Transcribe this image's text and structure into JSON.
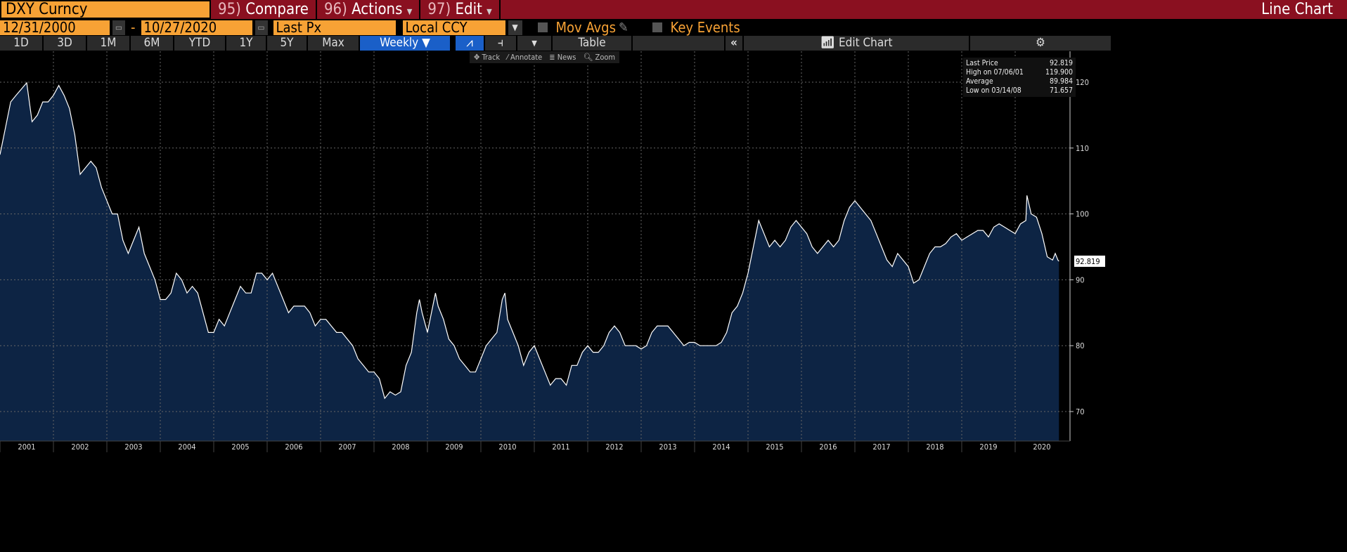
{
  "header": {
    "ticker": "DXY Curncy",
    "compare": {
      "num": "95)",
      "label": "Compare"
    },
    "actions": {
      "num": "96)",
      "label": "Actions"
    },
    "edit": {
      "num": "97)",
      "label": "Edit"
    },
    "title": "Line Chart"
  },
  "options": {
    "start_date": "12/31/2000",
    "dash": "-",
    "end_date": "10/27/2020",
    "field": "Last Px",
    "currency": "Local CCY",
    "mov_avgs": "Mov Avgs",
    "key_events": "Key Events"
  },
  "toolbar": {
    "ranges": [
      "1D",
      "3D",
      "1M",
      "6M",
      "YTD",
      "1Y",
      "5Y",
      "Max"
    ],
    "period": "Weekly ▼",
    "table": "Table",
    "collapse": "«",
    "edit_chart": "Edit Chart"
  },
  "chart_tools": {
    "track": "Track",
    "annotate": "Annotate",
    "news": "News",
    "zoom": "Zoom"
  },
  "legend": {
    "last_label": "Last Price",
    "last_value": "92.819",
    "high_label": "High on 07/06/01",
    "high_value": "119.900",
    "avg_label": "Average",
    "avg_value": "89.984",
    "low_label": "Low on 03/14/08",
    "low_value": "71.657"
  },
  "colors": {
    "line": "#ffffff",
    "area": "#0d2444",
    "accent": "#f7a235",
    "header": "#8a1020"
  },
  "chart_data": {
    "type": "area",
    "ylim": [
      67,
      125
    ],
    "xlim": [
      2001.0,
      2021.0
    ],
    "y_ticks": [
      70,
      80,
      90,
      100,
      110,
      120
    ],
    "x_tick_labels": [
      "2001",
      "2002",
      "2003",
      "2004",
      "2005",
      "2006",
      "2007",
      "2008",
      "2009",
      "2010",
      "2011",
      "2012",
      "2013",
      "2014",
      "2015",
      "2016",
      "2017",
      "2018",
      "2019",
      "2020"
    ],
    "last_value_label": "92.819",
    "grid": true,
    "x": [
      2001.0,
      2001.1,
      2001.2,
      2001.3,
      2001.5,
      2001.6,
      2001.7,
      2001.8,
      2001.9,
      2002.0,
      2002.1,
      2002.2,
      2002.3,
      2002.4,
      2002.5,
      2002.6,
      2002.7,
      2002.8,
      2002.9,
      2003.0,
      2003.1,
      2003.2,
      2003.3,
      2003.4,
      2003.5,
      2003.6,
      2003.7,
      2003.8,
      2003.9,
      2004.0,
      2004.1,
      2004.2,
      2004.3,
      2004.4,
      2004.5,
      2004.6,
      2004.7,
      2004.8,
      2004.9,
      2005.0,
      2005.1,
      2005.2,
      2005.3,
      2005.4,
      2005.5,
      2005.6,
      2005.7,
      2005.8,
      2005.9,
      2006.0,
      2006.1,
      2006.2,
      2006.3,
      2006.4,
      2006.5,
      2006.6,
      2006.7,
      2006.8,
      2006.9,
      2007.0,
      2007.1,
      2007.2,
      2007.3,
      2007.4,
      2007.5,
      2007.6,
      2007.7,
      2007.8,
      2007.9,
      2008.0,
      2008.1,
      2008.2,
      2008.3,
      2008.4,
      2008.5,
      2008.6,
      2008.7,
      2008.8,
      2008.85,
      2008.9,
      2009.0,
      2009.15,
      2009.2,
      2009.3,
      2009.4,
      2009.5,
      2009.6,
      2009.7,
      2009.8,
      2009.9,
      2010.0,
      2010.1,
      2010.2,
      2010.3,
      2010.4,
      2010.45,
      2010.5,
      2010.6,
      2010.7,
      2010.8,
      2010.9,
      2011.0,
      2011.1,
      2011.2,
      2011.3,
      2011.4,
      2011.5,
      2011.6,
      2011.7,
      2011.8,
      2011.9,
      2012.0,
      2012.1,
      2012.2,
      2012.3,
      2012.4,
      2012.5,
      2012.6,
      2012.7,
      2012.8,
      2012.9,
      2013.0,
      2013.1,
      2013.2,
      2013.3,
      2013.4,
      2013.5,
      2013.6,
      2013.7,
      2013.8,
      2013.9,
      2014.0,
      2014.1,
      2014.2,
      2014.3,
      2014.4,
      2014.5,
      2014.6,
      2014.7,
      2014.8,
      2014.9,
      2015.0,
      2015.1,
      2015.2,
      2015.3,
      2015.4,
      2015.5,
      2015.6,
      2015.7,
      2015.8,
      2015.9,
      2016.0,
      2016.1,
      2016.2,
      2016.3,
      2016.4,
      2016.5,
      2016.6,
      2016.7,
      2016.8,
      2016.9,
      2017.0,
      2017.1,
      2017.2,
      2017.3,
      2017.4,
      2017.5,
      2017.6,
      2017.7,
      2017.8,
      2017.9,
      2018.0,
      2018.1,
      2018.2,
      2018.3,
      2018.4,
      2018.5,
      2018.6,
      2018.7,
      2018.8,
      2018.9,
      2019.0,
      2019.1,
      2019.2,
      2019.3,
      2019.4,
      2019.5,
      2019.6,
      2019.7,
      2019.8,
      2019.9,
      2020.0,
      2020.1,
      2020.2,
      2020.22,
      2020.3,
      2020.4,
      2020.5,
      2020.6,
      2020.7,
      2020.75,
      2020.8,
      2020.82
    ],
    "y": [
      109,
      113,
      117,
      118,
      119.9,
      114,
      115,
      117,
      117,
      118,
      119.5,
      118,
      116,
      112,
      106,
      107,
      108,
      107,
      104,
      102,
      100,
      100,
      96,
      94,
      96,
      98,
      94,
      92,
      90,
      87,
      87,
      88,
      91,
      90,
      88,
      89,
      88,
      85,
      82,
      82,
      84,
      83,
      85,
      87,
      89,
      88,
      88,
      91,
      91,
      90,
      91,
      89,
      87,
      85,
      86,
      86,
      86,
      85,
      83,
      84,
      84,
      83,
      82,
      82,
      81,
      80,
      78,
      77,
      76,
      76,
      75,
      72,
      73,
      72.5,
      73,
      77,
      79,
      85,
      87,
      85,
      82,
      88,
      86,
      84,
      81,
      80,
      78,
      77,
      76,
      76,
      78,
      80,
      81,
      82,
      87,
      88,
      84,
      82,
      80,
      77,
      79,
      80,
      78,
      76,
      74,
      75,
      75,
      74,
      77,
      77,
      79,
      80,
      79,
      79,
      80,
      82,
      83,
      82,
      80,
      80,
      80,
      79.5,
      80,
      82,
      83,
      83,
      83,
      82,
      81,
      80,
      80.5,
      80.5,
      80,
      80,
      80,
      80,
      80.5,
      82,
      85,
      86,
      88,
      91,
      95,
      99,
      97,
      95,
      96,
      95,
      96,
      98,
      99,
      98,
      97,
      95,
      94,
      95,
      96,
      95,
      96,
      99,
      101,
      102,
      101,
      100,
      99,
      97,
      95,
      93,
      92,
      94,
      93,
      92,
      89.5,
      90,
      92,
      94,
      95,
      95,
      95.5,
      96.5,
      97,
      96,
      96.5,
      97,
      97.5,
      97.5,
      96.5,
      98,
      98.5,
      98,
      97.5,
      97,
      98.5,
      99,
      102.8,
      100,
      99.5,
      97,
      93.5,
      93,
      94,
      93,
      92.819
    ]
  }
}
